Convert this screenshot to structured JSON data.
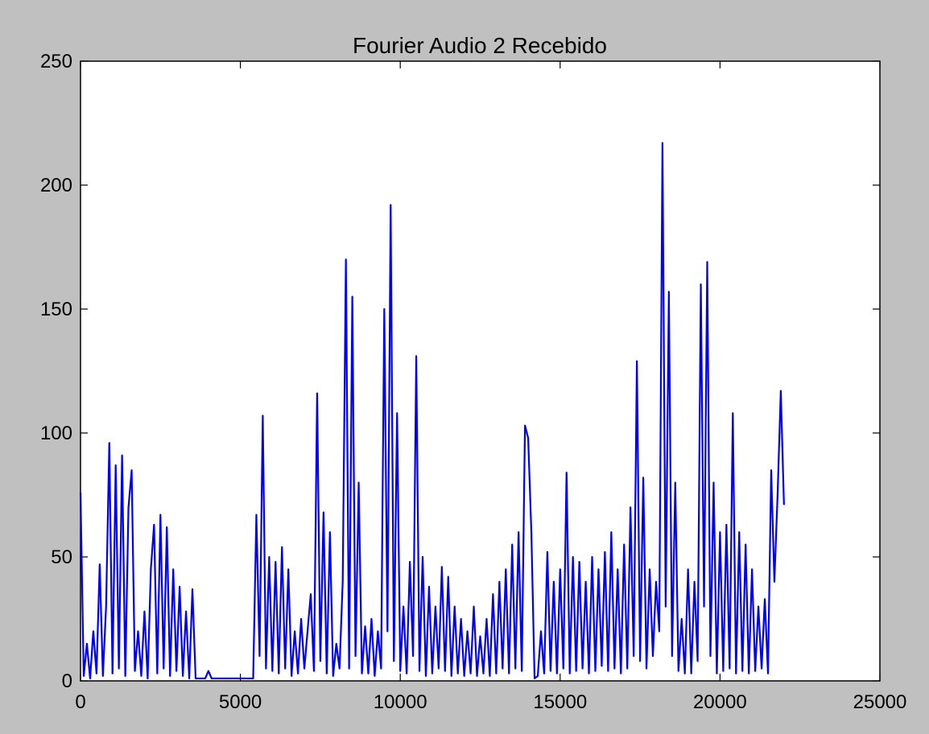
{
  "chart_data": {
    "type": "line",
    "title": "Fourier Audio 2 Recebido",
    "x": [
      0,
      100,
      200,
      300,
      400,
      500,
      600,
      700,
      800,
      900,
      1000,
      1100,
      1200,
      1300,
      1400,
      1500,
      1600,
      1700,
      1800,
      1900,
      2000,
      2100,
      2200,
      2300,
      2400,
      2500,
      2600,
      2700,
      2800,
      2900,
      3000,
      3100,
      3200,
      3300,
      3400,
      3500,
      3600,
      3700,
      3800,
      3900,
      4000,
      4100,
      4200,
      4300,
      4400,
      4500,
      4600,
      4700,
      4800,
      4900,
      5000,
      5100,
      5200,
      5300,
      5400,
      5500,
      5600,
      5700,
      5800,
      5900,
      6000,
      6100,
      6200,
      6300,
      6400,
      6500,
      6600,
      6700,
      6800,
      6900,
      7000,
      7100,
      7200,
      7300,
      7400,
      7500,
      7600,
      7700,
      7800,
      7900,
      8000,
      8100,
      8200,
      8300,
      8400,
      8500,
      8600,
      8700,
      8800,
      8900,
      9000,
      9100,
      9200,
      9300,
      9400,
      9500,
      9600,
      9700,
      9800,
      9900,
      10000,
      10100,
      10200,
      10300,
      10400,
      10500,
      10600,
      10700,
      10800,
      10900,
      11000,
      11100,
      11200,
      11300,
      11400,
      11500,
      11600,
      11700,
      11800,
      11900,
      12000,
      12100,
      12200,
      12300,
      12400,
      12500,
      12600,
      12700,
      12800,
      12900,
      13000,
      13100,
      13200,
      13300,
      13400,
      13500,
      13600,
      13700,
      13800,
      13900,
      14000,
      14100,
      14200,
      14300,
      14400,
      14500,
      14600,
      14700,
      14800,
      14900,
      15000,
      15100,
      15200,
      15300,
      15400,
      15500,
      15600,
      15700,
      15800,
      15900,
      16000,
      16100,
      16200,
      16300,
      16400,
      16500,
      16600,
      16700,
      16800,
      16900,
      17000,
      17100,
      17200,
      17300,
      17400,
      17500,
      17600,
      17700,
      17800,
      17900,
      18000,
      18100,
      18200,
      18300,
      18400,
      18500,
      18600,
      18700,
      18800,
      18900,
      19000,
      19100,
      19200,
      19300,
      19400,
      19500,
      19600,
      19700,
      19800,
      19900,
      20000,
      20100,
      20200,
      20300,
      20400,
      20500,
      20600,
      20700,
      20800,
      20900,
      21000,
      21100,
      21200,
      21300,
      21400,
      21500,
      21600,
      21700,
      21800,
      21900,
      22000
    ],
    "series": [
      {
        "color": "#0000ff",
        "values": [
          76,
          2,
          15,
          1,
          20,
          3,
          47,
          2,
          30,
          96,
          3,
          87,
          5,
          91,
          2,
          70,
          85,
          4,
          20,
          2,
          28,
          1,
          45,
          63,
          3,
          67,
          5,
          62,
          2,
          45,
          4,
          38,
          2,
          28,
          1,
          37,
          1,
          1,
          1,
          1,
          4,
          1,
          1,
          1,
          1,
          1,
          1,
          1,
          1,
          1,
          1,
          1,
          1,
          1,
          1,
          67,
          10,
          107,
          5,
          50,
          4,
          48,
          3,
          54,
          5,
          45,
          2,
          20,
          3,
          25,
          5,
          20,
          35,
          4,
          116,
          8,
          68,
          3,
          60,
          2,
          15,
          5,
          40,
          170,
          5,
          155,
          10,
          80,
          3,
          22,
          3,
          25,
          2,
          20,
          5,
          150,
          20,
          192,
          8,
          108,
          4,
          30,
          3,
          48,
          10,
          131,
          4,
          50,
          2,
          38,
          3,
          30,
          5,
          46,
          4,
          42,
          2,
          30,
          3,
          25,
          2,
          20,
          3,
          30,
          2,
          18,
          3,
          25,
          2,
          35,
          3,
          40,
          5,
          45,
          3,
          55,
          5,
          60,
          4,
          103,
          98,
          60,
          1,
          2,
          20,
          3,
          52,
          4,
          40,
          3,
          45,
          5,
          84,
          3,
          50,
          4,
          48,
          5,
          40,
          3,
          50,
          4,
          45,
          6,
          52,
          4,
          60,
          5,
          45,
          3,
          55,
          5,
          70,
          10,
          129,
          8,
          82,
          5,
          45,
          10,
          40,
          20,
          217,
          30,
          157,
          10,
          80,
          4,
          25,
          3,
          45,
          3,
          40,
          8,
          160,
          30,
          169,
          10,
          80,
          3,
          60,
          4,
          63,
          5,
          108,
          3,
          60,
          4,
          55,
          3,
          45,
          4,
          30,
          5,
          33,
          3,
          85,
          40,
          75,
          117,
          71
        ]
      }
    ],
    "xlim": [
      0,
      25000
    ],
    "xticks": [
      0,
      5000,
      10000,
      15000,
      20000,
      25000
    ],
    "ylim": [
      0,
      250
    ],
    "yticks": [
      0,
      50,
      100,
      150,
      200,
      250
    ]
  }
}
